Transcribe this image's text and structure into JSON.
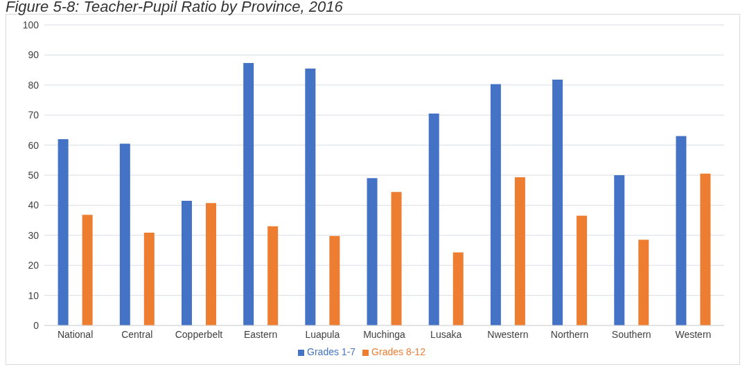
{
  "chart_data": {
    "type": "bar",
    "title": "Figure 5-8: Teacher-Pupil Ratio by Province, 2016",
    "categories": [
      "National",
      "Central",
      "Copperbelt",
      "Eastern",
      "Luapula",
      "Muchinga",
      "Lusaka",
      "Nwestern",
      "Northern",
      "Southern",
      "Western"
    ],
    "series": [
      {
        "name": "Grades 1-7",
        "color": "#4472c4",
        "values": [
          62,
          60.5,
          41.5,
          87.3,
          85.5,
          49,
          70.5,
          80.3,
          81.8,
          50,
          63
        ]
      },
      {
        "name": "Grades 8-12",
        "color": "#ed7d31",
        "values": [
          36.8,
          30.9,
          40.7,
          33,
          29.8,
          44.4,
          24.3,
          49.3,
          36.5,
          28.5,
          50.5
        ]
      }
    ],
    "ylim": [
      0,
      100
    ],
    "yticks": [
      0,
      10,
      20,
      30,
      40,
      50,
      60,
      70,
      80,
      90,
      100
    ],
    "grid": "y",
    "legend": "bottom"
  }
}
